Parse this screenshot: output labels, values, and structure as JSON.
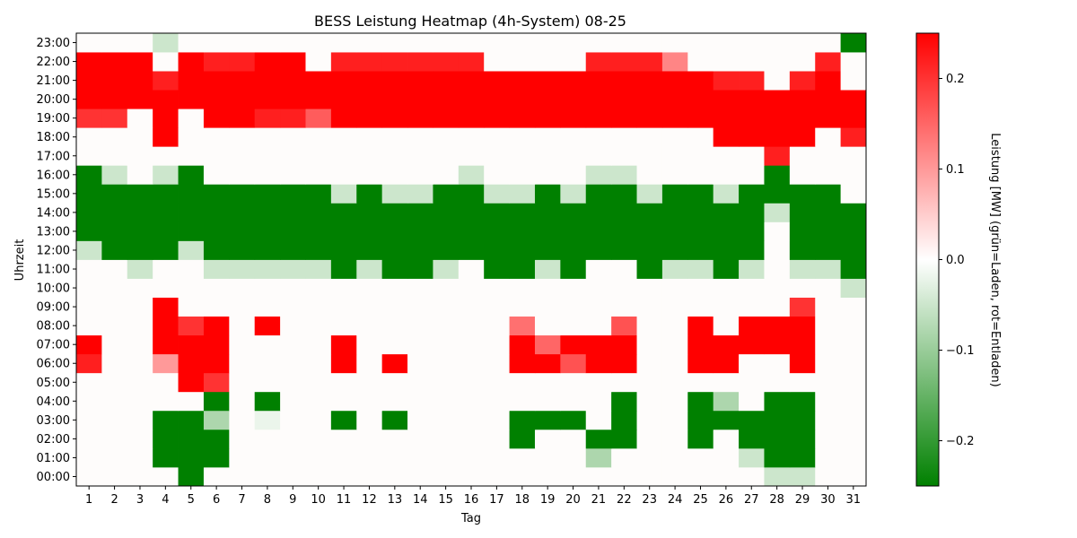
{
  "chart_data": {
    "type": "heatmap",
    "title": "BESS Leistung Heatmap (4h-System) 08-25",
    "xlabel": "Tag",
    "ylabel": "Uhrzeit",
    "x_categories": [
      "1",
      "2",
      "3",
      "4",
      "5",
      "6",
      "7",
      "8",
      "9",
      "10",
      "11",
      "12",
      "13",
      "14",
      "15",
      "16",
      "17",
      "18",
      "19",
      "20",
      "21",
      "22",
      "23",
      "24",
      "25",
      "26",
      "27",
      "28",
      "29",
      "30",
      "31"
    ],
    "y_categories": [
      "00:00",
      "01:00",
      "02:00",
      "03:00",
      "04:00",
      "05:00",
      "06:00",
      "07:00",
      "08:00",
      "09:00",
      "10:00",
      "11:00",
      "12:00",
      "13:00",
      "14:00",
      "15:00",
      "16:00",
      "17:00",
      "18:00",
      "19:00",
      "20:00",
      "21:00",
      "22:00",
      "23:00"
    ],
    "colorbar": {
      "label": "Leistung [MW] (grün=Laden, rot=Entladen)",
      "vmin": -0.25,
      "vmax": 0.25,
      "ticks": [
        -0.2,
        -0.1,
        0.0,
        0.1,
        0.2
      ],
      "tick_labels": [
        "−0.2",
        "−0.1",
        "0.0",
        "0.1",
        "0.2"
      ],
      "color_low": "#008000",
      "color_mid": "#ffffff",
      "color_high": "#ff0000"
    },
    "values": [
      [
        0,
        0,
        0,
        0,
        -0.25,
        0,
        0,
        0,
        0,
        0,
        0,
        0,
        0,
        0,
        0,
        0,
        0,
        0,
        0,
        0,
        0,
        0,
        0,
        0,
        0,
        0,
        0,
        -0.05,
        -0.05,
        0,
        0
      ],
      [
        0,
        0,
        0,
        -0.25,
        -0.25,
        -0.25,
        0,
        0,
        0,
        0,
        0,
        0,
        0,
        0,
        0,
        0,
        0,
        0,
        0,
        0,
        -0.08,
        0,
        0,
        0,
        0,
        0,
        -0.05,
        -0.25,
        -0.25,
        0,
        0
      ],
      [
        0,
        0,
        0,
        -0.25,
        -0.25,
        -0.25,
        0,
        0,
        0,
        0,
        0,
        0,
        0,
        0,
        0,
        0,
        0,
        -0.25,
        0,
        0,
        -0.25,
        -0.25,
        0,
        0,
        -0.25,
        0,
        -0.25,
        -0.25,
        -0.25,
        0,
        0
      ],
      [
        0,
        0,
        0,
        -0.25,
        -0.25,
        -0.08,
        0,
        -0.02,
        0,
        0,
        -0.25,
        0,
        -0.25,
        0,
        0,
        0,
        0,
        -0.25,
        -0.25,
        -0.25,
        0,
        -0.25,
        0,
        0,
        -0.25,
        -0.25,
        -0.25,
        -0.25,
        -0.25,
        0,
        0
      ],
      [
        0,
        0,
        0,
        0,
        0,
        -0.25,
        0,
        -0.25,
        0,
        0,
        0,
        0,
        0,
        0,
        0,
        0,
        0,
        0,
        0,
        0,
        0,
        -0.25,
        0,
        0,
        -0.25,
        -0.08,
        0,
        -0.25,
        -0.25,
        0,
        0
      ],
      [
        0,
        0,
        0,
        0,
        0.25,
        0.2,
        0,
        0,
        0,
        0,
        0,
        0,
        0,
        0,
        0,
        0,
        0,
        0,
        0,
        0,
        0,
        0,
        0,
        0,
        0,
        0,
        0,
        0,
        0,
        0,
        0
      ],
      [
        0.22,
        0,
        0,
        0.1,
        0.25,
        0.25,
        0,
        0,
        0,
        0,
        0.25,
        0,
        0.25,
        0,
        0,
        0,
        0,
        0.25,
        0.25,
        0.17,
        0.25,
        0.25,
        0,
        0,
        0.25,
        0.25,
        0,
        0,
        0.25,
        0,
        0
      ],
      [
        0.25,
        0,
        0,
        0.25,
        0.25,
        0.25,
        0,
        0,
        0,
        0,
        0.25,
        0,
        0,
        0,
        0,
        0,
        0,
        0.25,
        0.15,
        0.25,
        0.25,
        0.25,
        0,
        0,
        0.25,
        0.25,
        0.25,
        0.25,
        0.25,
        0,
        0
      ],
      [
        0,
        0,
        0,
        0.25,
        0.2,
        0.25,
        0,
        0.25,
        0,
        0,
        0,
        0,
        0,
        0,
        0,
        0,
        0,
        0.14,
        0,
        0,
        0,
        0.17,
        0,
        0,
        0.25,
        0,
        0.25,
        0.25,
        0.25,
        0,
        0
      ],
      [
        0,
        0,
        0,
        0.25,
        0,
        0,
        0,
        0,
        0,
        0,
        0,
        0,
        0,
        0,
        0,
        0,
        0,
        0,
        0,
        0,
        0,
        0,
        0,
        0,
        0,
        0,
        0,
        0,
        0.2,
        0,
        0
      ],
      [
        0,
        0,
        0,
        0,
        0,
        0,
        0,
        0,
        0,
        0,
        0,
        0,
        0,
        0,
        0,
        0,
        0,
        0,
        0,
        0,
        0,
        0,
        0,
        0,
        0,
        0,
        0,
        0,
        0,
        0,
        -0.05
      ],
      [
        0,
        0,
        -0.05,
        0,
        0,
        -0.05,
        -0.05,
        -0.05,
        -0.05,
        -0.05,
        -0.25,
        -0.05,
        -0.25,
        -0.25,
        -0.05,
        0,
        -0.25,
        -0.25,
        -0.05,
        -0.25,
        0,
        0,
        -0.25,
        -0.05,
        -0.05,
        -0.25,
        -0.05,
        0,
        -0.05,
        -0.05,
        -0.25
      ],
      [
        -0.05,
        -0.25,
        -0.25,
        -0.25,
        -0.05,
        -0.25,
        -0.25,
        -0.25,
        -0.25,
        -0.25,
        -0.25,
        -0.25,
        -0.25,
        -0.25,
        -0.25,
        -0.25,
        -0.25,
        -0.25,
        -0.25,
        -0.25,
        -0.25,
        -0.25,
        -0.25,
        -0.25,
        -0.25,
        -0.25,
        -0.25,
        0,
        -0.25,
        -0.25,
        -0.25
      ],
      [
        -0.25,
        -0.25,
        -0.25,
        -0.25,
        -0.25,
        -0.25,
        -0.25,
        -0.25,
        -0.25,
        -0.25,
        -0.25,
        -0.25,
        -0.25,
        -0.25,
        -0.25,
        -0.25,
        -0.25,
        -0.25,
        -0.25,
        -0.25,
        -0.25,
        -0.25,
        -0.25,
        -0.25,
        -0.25,
        -0.25,
        -0.25,
        0,
        -0.25,
        -0.25,
        -0.25
      ],
      [
        -0.25,
        -0.25,
        -0.25,
        -0.25,
        -0.25,
        -0.25,
        -0.25,
        -0.25,
        -0.25,
        -0.25,
        -0.25,
        -0.25,
        -0.25,
        -0.25,
        -0.25,
        -0.25,
        -0.25,
        -0.25,
        -0.25,
        -0.25,
        -0.25,
        -0.25,
        -0.25,
        -0.25,
        -0.25,
        -0.25,
        -0.25,
        -0.05,
        -0.25,
        -0.25,
        -0.25
      ],
      [
        -0.25,
        -0.25,
        -0.25,
        -0.25,
        -0.25,
        -0.25,
        -0.25,
        -0.25,
        -0.25,
        -0.25,
        -0.05,
        -0.25,
        -0.05,
        -0.05,
        -0.25,
        -0.25,
        -0.05,
        -0.05,
        -0.25,
        -0.05,
        -0.25,
        -0.25,
        -0.05,
        -0.25,
        -0.25,
        -0.05,
        -0.25,
        -0.25,
        -0.25,
        -0.25,
        0
      ],
      [
        -0.25,
        -0.05,
        0,
        -0.05,
        -0.25,
        0,
        0,
        0,
        0,
        0,
        0,
        0,
        0,
        0,
        0,
        -0.05,
        0,
        0,
        0,
        0,
        -0.05,
        -0.05,
        0,
        0,
        0,
        0,
        0,
        -0.25,
        0,
        0,
        0
      ],
      [
        0,
        0,
        0,
        0,
        0,
        0,
        0,
        0,
        0,
        0,
        0,
        0,
        0,
        0,
        0,
        0,
        0,
        0,
        0,
        0,
        0,
        0,
        0,
        0,
        0,
        0,
        0,
        0.22,
        0,
        0,
        0
      ],
      [
        0,
        0,
        0,
        0.25,
        0,
        0,
        0,
        0,
        0,
        0,
        0,
        0,
        0,
        0,
        0,
        0,
        0,
        0,
        0,
        0,
        0,
        0,
        0,
        0,
        0,
        0.25,
        0.25,
        0.25,
        0.25,
        0,
        0.22
      ],
      [
        0.2,
        0.2,
        0,
        0.25,
        0,
        0.25,
        0.25,
        0.22,
        0.22,
        0.16,
        0.25,
        0.25,
        0.25,
        0.25,
        0.25,
        0.25,
        0.25,
        0.25,
        0.25,
        0.25,
        0.25,
        0.25,
        0.25,
        0.25,
        0.25,
        0.25,
        0.25,
        0.25,
        0.25,
        0.25,
        0.25
      ],
      [
        0.25,
        0.25,
        0.25,
        0.25,
        0.25,
        0.25,
        0.25,
        0.25,
        0.25,
        0.25,
        0.25,
        0.25,
        0.25,
        0.25,
        0.25,
        0.25,
        0.25,
        0.25,
        0.25,
        0.25,
        0.25,
        0.25,
        0.25,
        0.25,
        0.25,
        0.25,
        0.25,
        0.25,
        0.25,
        0.25,
        0.25
      ],
      [
        0.25,
        0.25,
        0.25,
        0.22,
        0.25,
        0.25,
        0.25,
        0.25,
        0.25,
        0.25,
        0.25,
        0.25,
        0.25,
        0.25,
        0.25,
        0.25,
        0.25,
        0.25,
        0.25,
        0.25,
        0.25,
        0.25,
        0.25,
        0.25,
        0.25,
        0.22,
        0.22,
        0,
        0.22,
        0.25,
        0
      ],
      [
        0.25,
        0.25,
        0.25,
        0,
        0.25,
        0.22,
        0.22,
        0.25,
        0.25,
        0,
        0.22,
        0.22,
        0.22,
        0.22,
        0.22,
        0.22,
        0,
        0,
        0,
        0,
        0.22,
        0.22,
        0.22,
        0.12,
        0,
        0,
        0,
        0,
        0,
        0.22,
        0
      ],
      [
        0,
        0,
        0,
        -0.05,
        0,
        0,
        0,
        0,
        0,
        0,
        0,
        0,
        0,
        0,
        0,
        0,
        0,
        0,
        0,
        0,
        0,
        0,
        0,
        0,
        0,
        0,
        0,
        0,
        0,
        0,
        -0.25
      ]
    ]
  }
}
